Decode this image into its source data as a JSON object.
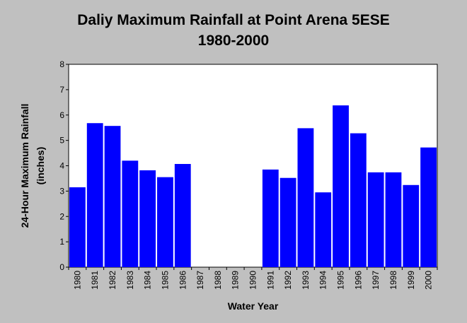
{
  "chart_data": {
    "type": "bar",
    "title": "Daliy Maximum Rainfall at Point Arena 5ESE",
    "subtitle": "1980-2000",
    "xlabel": "Water Year",
    "ylabel_line1": "24-Hour Maximum Rainfall",
    "ylabel_line2": "(inches)",
    "ylim": [
      0,
      8
    ],
    "yticks": [
      0,
      1,
      2,
      3,
      4,
      5,
      6,
      7,
      8
    ],
    "categories": [
      "1980",
      "1981",
      "1982",
      "1983",
      "1984",
      "1985",
      "1986",
      "1987",
      "1988",
      "1989",
      "1990",
      "1991",
      "1992",
      "1993",
      "1994",
      "1995",
      "1996",
      "1997",
      "1998",
      "1999",
      "2000"
    ],
    "values": [
      3.15,
      5.68,
      5.57,
      4.2,
      3.82,
      3.55,
      4.07,
      0,
      0,
      0,
      0,
      3.85,
      3.52,
      5.48,
      2.95,
      6.38,
      5.28,
      3.74,
      3.74,
      3.24,
      4.72
    ],
    "bar_color": "#0000ff",
    "plot_background": "#ffffff",
    "grid": false
  }
}
